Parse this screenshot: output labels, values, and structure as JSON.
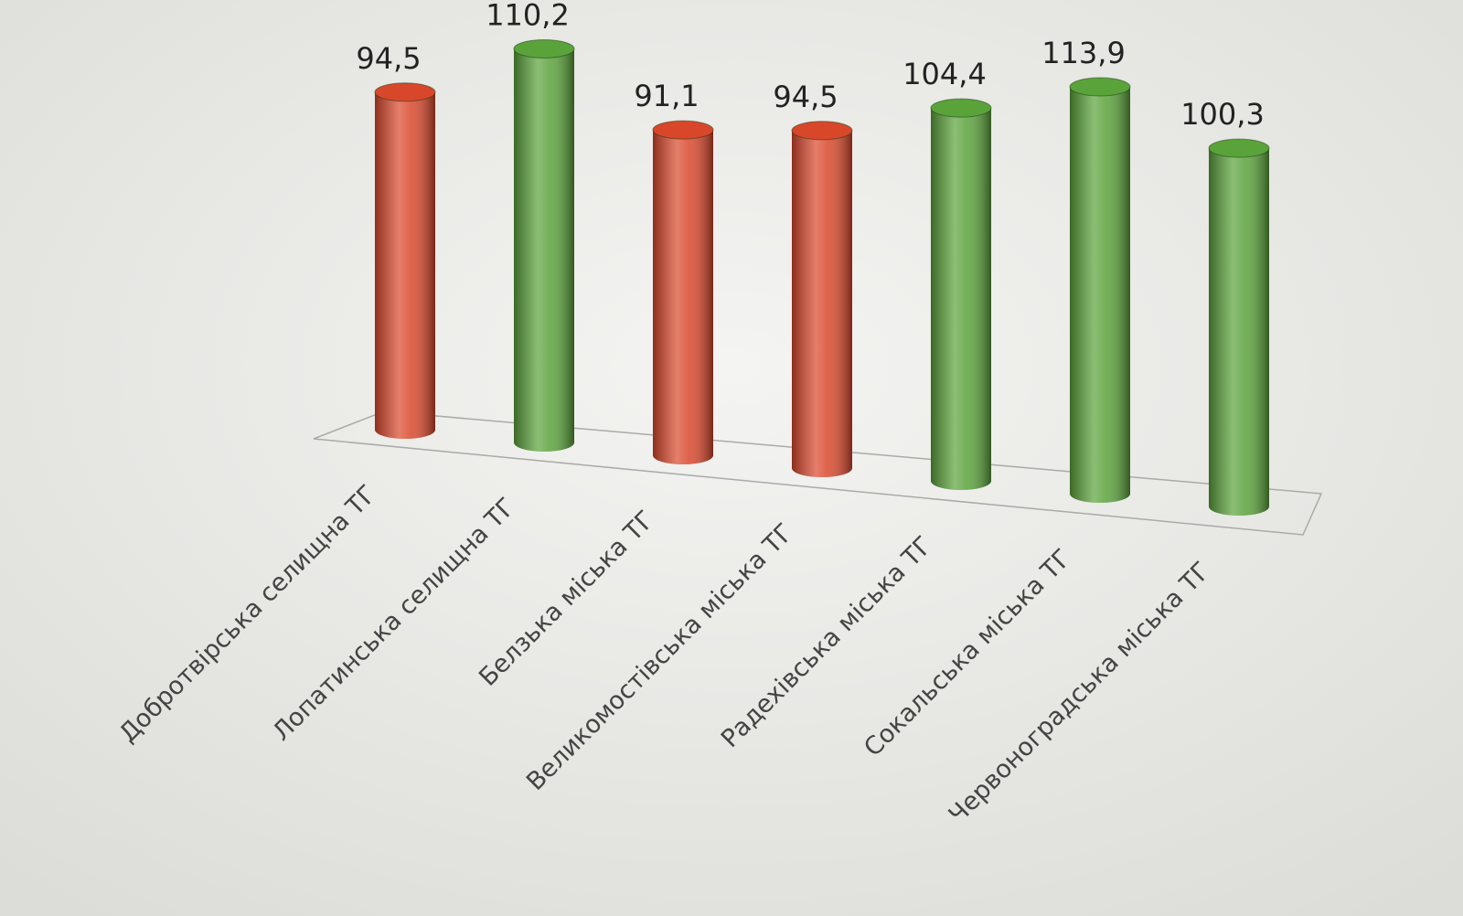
{
  "chart_data": {
    "type": "bar",
    "categories": [
      "Добротвірська селищна ТГ",
      "Лопатинська селищна ТГ",
      "Белзька міська ТГ",
      "Великомостівська міська ТГ",
      "Радехівська міська ТГ",
      "Сокальська міська ТГ",
      "Червоноградська міська ТГ"
    ],
    "values": [
      94.5,
      110.2,
      91.1,
      94.5,
      104.4,
      113.9,
      100.3
    ],
    "value_labels": [
      "94,5",
      "110,2",
      "91,1",
      "94,5",
      "104,4",
      "113,9",
      "100,3"
    ],
    "colors": [
      "#d9472b",
      "#5aa23a",
      "#d9472b",
      "#d9472b",
      "#5aa23a",
      "#5aa23a",
      "#5aa23a"
    ]
  }
}
